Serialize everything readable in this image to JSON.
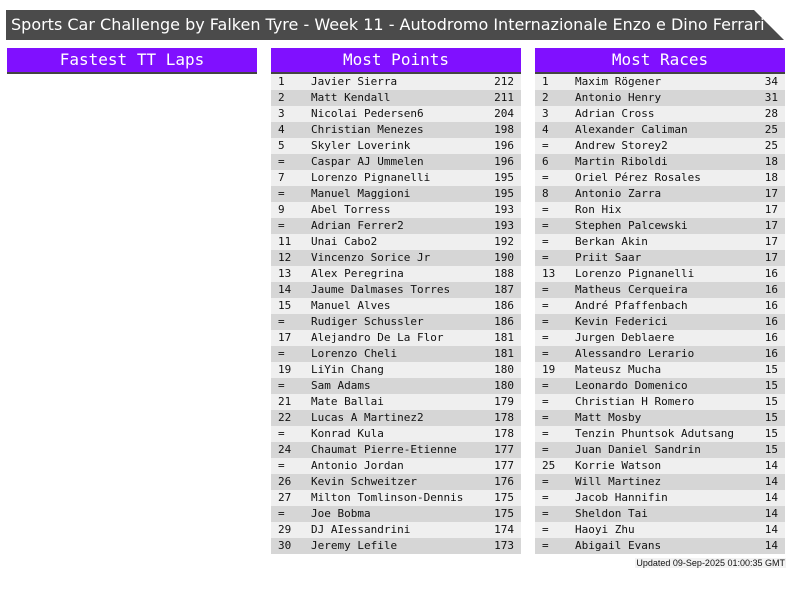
{
  "title": "Sports Car Challenge by Falken Tyre - Week 11 - Autodromo Internazionale Enzo e Dino Ferrari",
  "colors": {
    "header_purple": "#8010ff",
    "title_bg": "#4b4b4b",
    "row_light": "#efefef",
    "row_dark": "#d6d6d6"
  },
  "panels": [
    {
      "title": "Fastest TT Laps",
      "rows": []
    },
    {
      "title": "Most Points",
      "rows": [
        [
          "1",
          "Javier Sierra",
          "212"
        ],
        [
          "2",
          "Matt Kendall",
          "211"
        ],
        [
          "3",
          "Nicolai Pedersen6",
          "204"
        ],
        [
          "4",
          "Christian Menezes",
          "198"
        ],
        [
          "5",
          "Skyler Loverink",
          "196"
        ],
        [
          "=",
          "Caspar AJ Ummelen",
          "196"
        ],
        [
          "7",
          "Lorenzo Pignanelli",
          "195"
        ],
        [
          "=",
          "Manuel Maggioni",
          "195"
        ],
        [
          "9",
          "Abel Torress",
          "193"
        ],
        [
          "=",
          "Adrian Ferrer2",
          "193"
        ],
        [
          "11",
          "Unai Cabo2",
          "192"
        ],
        [
          "12",
          "Vincenzo Sorice Jr",
          "190"
        ],
        [
          "13",
          "Alex Peregrina",
          "188"
        ],
        [
          "14",
          "Jaume Dalmases Torres",
          "187"
        ],
        [
          "15",
          "Manuel Alves",
          "186"
        ],
        [
          "=",
          "Rudiger Schussler",
          "186"
        ],
        [
          "17",
          "Alejandro De La Flor",
          "181"
        ],
        [
          "=",
          "Lorenzo Cheli",
          "181"
        ],
        [
          "19",
          "LiYin Chang",
          "180"
        ],
        [
          "=",
          "Sam Adams",
          "180"
        ],
        [
          "21",
          "Mate Ballai",
          "179"
        ],
        [
          "22",
          "Lucas A Martinez2",
          "178"
        ],
        [
          "=",
          "Konrad Kula",
          "178"
        ],
        [
          "24",
          "Chaumat Pierre-Etienne",
          "177"
        ],
        [
          "=",
          "Antonio Jordan",
          "177"
        ],
        [
          "26",
          "Kevin Schweitzer",
          "176"
        ],
        [
          "27",
          "Milton Tomlinson-Dennis",
          "175"
        ],
        [
          "=",
          "Joe Bobma",
          "175"
        ],
        [
          "29",
          "DJ AIessandrini",
          "174"
        ],
        [
          "30",
          "Jeremy Lefile",
          "173"
        ]
      ]
    },
    {
      "title": "Most Races",
      "rows": [
        [
          "1",
          "Maxim Rögener",
          "34"
        ],
        [
          "2",
          "Antonio Henry",
          "31"
        ],
        [
          "3",
          "Adrian Cross",
          "28"
        ],
        [
          "4",
          "Alexander Caliman",
          "25"
        ],
        [
          "=",
          "Andrew Storey2",
          "25"
        ],
        [
          "6",
          "Martin Riboldi",
          "18"
        ],
        [
          "=",
          "Oriel Pérez Rosales",
          "18"
        ],
        [
          "8",
          "Antonio Zarra",
          "17"
        ],
        [
          "=",
          "Ron Hix",
          "17"
        ],
        [
          "=",
          "Stephen Palcewski",
          "17"
        ],
        [
          "=",
          "Berkan Akin",
          "17"
        ],
        [
          "=",
          "Priit Saar",
          "17"
        ],
        [
          "13",
          "Lorenzo Pignanelli",
          "16"
        ],
        [
          "=",
          "Matheus Cerqueira",
          "16"
        ],
        [
          "=",
          "André Pfaffenbach",
          "16"
        ],
        [
          "=",
          "Kevin Federici",
          "16"
        ],
        [
          "=",
          "Jurgen Deblaere",
          "16"
        ],
        [
          "=",
          "Alessandro Lerario",
          "16"
        ],
        [
          "19",
          "Mateusz Mucha",
          "15"
        ],
        [
          "=",
          "Leonardo Domenico",
          "15"
        ],
        [
          "=",
          "Christian H Romero",
          "15"
        ],
        [
          "=",
          "Matt Mosby",
          "15"
        ],
        [
          "=",
          "Tenzin Phuntsok Adutsang",
          "15"
        ],
        [
          "=",
          "Juan Daniel Sandrin",
          "15"
        ],
        [
          "25",
          "Korrie Watson",
          "14"
        ],
        [
          "=",
          "Will Martinez",
          "14"
        ],
        [
          "=",
          "Jacob Hannifin",
          "14"
        ],
        [
          "=",
          "Sheldon Tai",
          "14"
        ],
        [
          "=",
          "Haoyi Zhu",
          "14"
        ],
        [
          "=",
          "Abigail Evans",
          "14"
        ]
      ]
    }
  ],
  "updated": "Updated 09-Sep-2025 01:00:35 GMT"
}
